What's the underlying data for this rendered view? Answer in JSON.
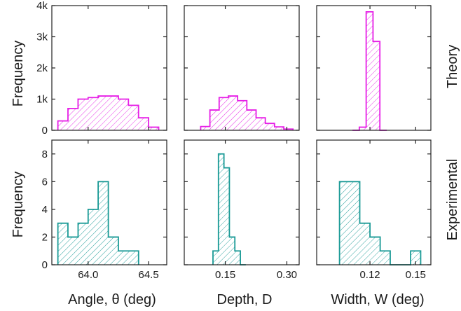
{
  "colors": {
    "theory": "#e61ee6",
    "experimental": "#1a9a96",
    "axis": "#222222"
  },
  "rows": [
    {
      "label": "Theory",
      "ylabel": "Frequency"
    },
    {
      "label": "Experimental",
      "ylabel": "Frequency"
    }
  ],
  "columns": [
    {
      "xlabel": "Angle, θ (deg)"
    },
    {
      "xlabel": "Depth, D"
    },
    {
      "xlabel": "Width, W (deg)"
    }
  ],
  "chart_data": [
    {
      "type": "bar",
      "histogram": true,
      "row": "Theory",
      "column": "Angle",
      "xlim": [
        63.7,
        64.65
      ],
      "ylim": [
        0,
        4000
      ],
      "yticks": [
        0,
        1000,
        2000,
        3000,
        4000
      ],
      "ytick_labels": [
        "0",
        "1k",
        "2k",
        "3k",
        "4k"
      ],
      "xticks": [
        64.0,
        64.5
      ],
      "xtick_labels": [
        "",
        ""
      ],
      "bin_edges": [
        63.75,
        63.8333,
        63.9167,
        64.0,
        64.0833,
        64.1667,
        64.25,
        64.3333,
        64.4167,
        64.5,
        64.5833
      ],
      "values": [
        300,
        700,
        1000,
        1050,
        1100,
        1100,
        1000,
        800,
        400,
        100
      ]
    },
    {
      "type": "bar",
      "histogram": true,
      "row": "Theory",
      "column": "Depth",
      "xlim": [
        0.05,
        0.33
      ],
      "ylim": [
        0,
        4000
      ],
      "yticks": [
        0,
        1000,
        2000,
        3000,
        4000
      ],
      "ytick_labels": [
        "",
        "",
        "",
        "",
        ""
      ],
      "xticks": [
        0.15,
        0.3
      ],
      "xtick_labels": [
        "",
        ""
      ],
      "bin_edges": [
        0.09,
        0.1125,
        0.135,
        0.1575,
        0.18,
        0.2025,
        0.225,
        0.2475,
        0.27,
        0.2925,
        0.315
      ],
      "values": [
        120,
        650,
        1050,
        1100,
        950,
        650,
        400,
        220,
        110,
        40
      ]
    },
    {
      "type": "bar",
      "histogram": true,
      "row": "Theory",
      "column": "Width",
      "xlim": [
        0.085,
        0.16
      ],
      "ylim": [
        0,
        4000
      ],
      "yticks": [
        0,
        1000,
        2000,
        3000,
        4000
      ],
      "ytick_labels": [
        "",
        "",
        "",
        "",
        ""
      ],
      "xticks": [
        0.12,
        0.15
      ],
      "xtick_labels": [
        "",
        ""
      ],
      "bin_edges": [
        0.1085,
        0.113,
        0.1175,
        0.122,
        0.1265,
        0.131
      ],
      "values": [
        0,
        100,
        3800,
        2850,
        0
      ]
    },
    {
      "type": "bar",
      "histogram": true,
      "row": "Experimental",
      "column": "Angle",
      "xlim": [
        63.7,
        64.65
      ],
      "ylim": [
        0,
        9
      ],
      "yticks": [
        0,
        2,
        4,
        6,
        8
      ],
      "ytick_labels": [
        "0",
        "2",
        "4",
        "6",
        "8"
      ],
      "xticks": [
        64.0,
        64.5
      ],
      "xtick_labels": [
        "64.0",
        "64.5"
      ],
      "bin_edges": [
        63.75,
        63.833,
        63.917,
        64.0,
        64.083,
        64.167,
        64.25,
        64.417
      ],
      "values": [
        3,
        2,
        3,
        4,
        6,
        2,
        1
      ]
    },
    {
      "type": "bar",
      "histogram": true,
      "row": "Experimental",
      "column": "Depth",
      "xlim": [
        0.05,
        0.33
      ],
      "ylim": [
        0,
        9
      ],
      "yticks": [
        0,
        2,
        4,
        6,
        8
      ],
      "ytick_labels": [
        "",
        "",
        "",
        "",
        ""
      ],
      "xticks": [
        0.15,
        0.3
      ],
      "xtick_labels": [
        "0.15",
        "0.30"
      ],
      "bin_edges": [
        0.12,
        0.1333,
        0.1467,
        0.16,
        0.1733,
        0.1867,
        0.2
      ],
      "values": [
        1,
        8,
        7,
        2,
        1,
        0
      ]
    },
    {
      "type": "bar",
      "histogram": true,
      "row": "Experimental",
      "column": "Width",
      "xlim": [
        0.085,
        0.16
      ],
      "ylim": [
        0,
        9
      ],
      "yticks": [
        0,
        2,
        4,
        6,
        8
      ],
      "ytick_labels": [
        "",
        "",
        "",
        "",
        ""
      ],
      "xticks": [
        0.12,
        0.15
      ],
      "xtick_labels": [
        "0.12",
        "0.15"
      ],
      "bin_edges": [
        0.1,
        0.1067,
        0.1133,
        0.12,
        0.1267,
        0.1333,
        0.14,
        0.1467,
        0.1533
      ],
      "values": [
        6,
        6,
        3,
        2,
        1,
        0,
        0,
        1
      ]
    }
  ]
}
